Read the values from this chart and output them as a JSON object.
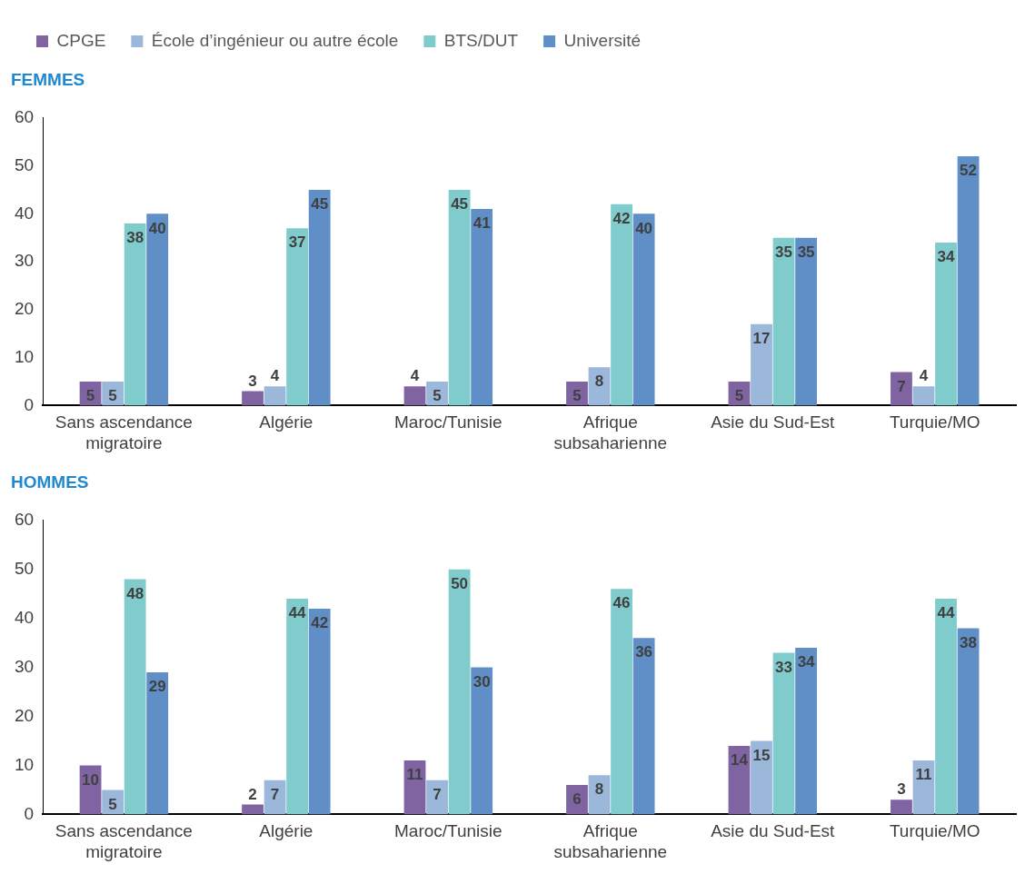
{
  "chart_data": [
    {
      "type": "bar",
      "title": "FEMMES",
      "categories": [
        "Sans ascendance migratoire",
        "Algérie",
        "Maroc/Tunisie",
        "Afrique subsaharienne",
        "Asie du Sud-Est",
        "Turquie/MO"
      ],
      "series": [
        {
          "name": "CPGE",
          "color": "#8064a2",
          "values": [
            5,
            3,
            4,
            5,
            5,
            7
          ]
        },
        {
          "name": "École d’ingénieur ou autre école",
          "color": "#9bb7d9",
          "values": [
            5,
            4,
            5,
            8,
            17,
            4
          ]
        },
        {
          "name": "BTS/DUT",
          "color": "#80cccc",
          "values": [
            38,
            37,
            45,
            42,
            35,
            34
          ]
        },
        {
          "name": "Université",
          "color": "#5f8fc6",
          "values": [
            40,
            45,
            41,
            40,
            35,
            52
          ]
        }
      ],
      "ylim": [
        0,
        60
      ],
      "yticks": [
        0,
        10,
        20,
        30,
        40,
        50,
        60
      ],
      "grid": false,
      "legend": "top",
      "data_labels": true
    },
    {
      "type": "bar",
      "title": "HOMMES",
      "categories": [
        "Sans ascendance migratoire",
        "Algérie",
        "Maroc/Tunisie",
        "Afrique subsaharienne",
        "Asie du Sud-Est",
        "Turquie/MO"
      ],
      "series": [
        {
          "color": "#8064a2",
          "values": [
            10,
            2,
            11,
            6,
            14,
            3
          ]
        },
        {
          "color": "#9bb7d9",
          "values": [
            5,
            7,
            7,
            8,
            15,
            11
          ]
        },
        {
          "color": "#80cccc",
          "values": [
            48,
            44,
            50,
            46,
            33,
            44
          ]
        },
        {
          "color": "#5f8fc6",
          "values": [
            29,
            42,
            30,
            36,
            34,
            38
          ]
        }
      ],
      "ylim": [
        0,
        60
      ],
      "yticks": [
        0,
        10,
        20,
        30,
        40,
        50,
        60
      ],
      "grid": false,
      "legend": false,
      "data_labels": true
    }
  ]
}
